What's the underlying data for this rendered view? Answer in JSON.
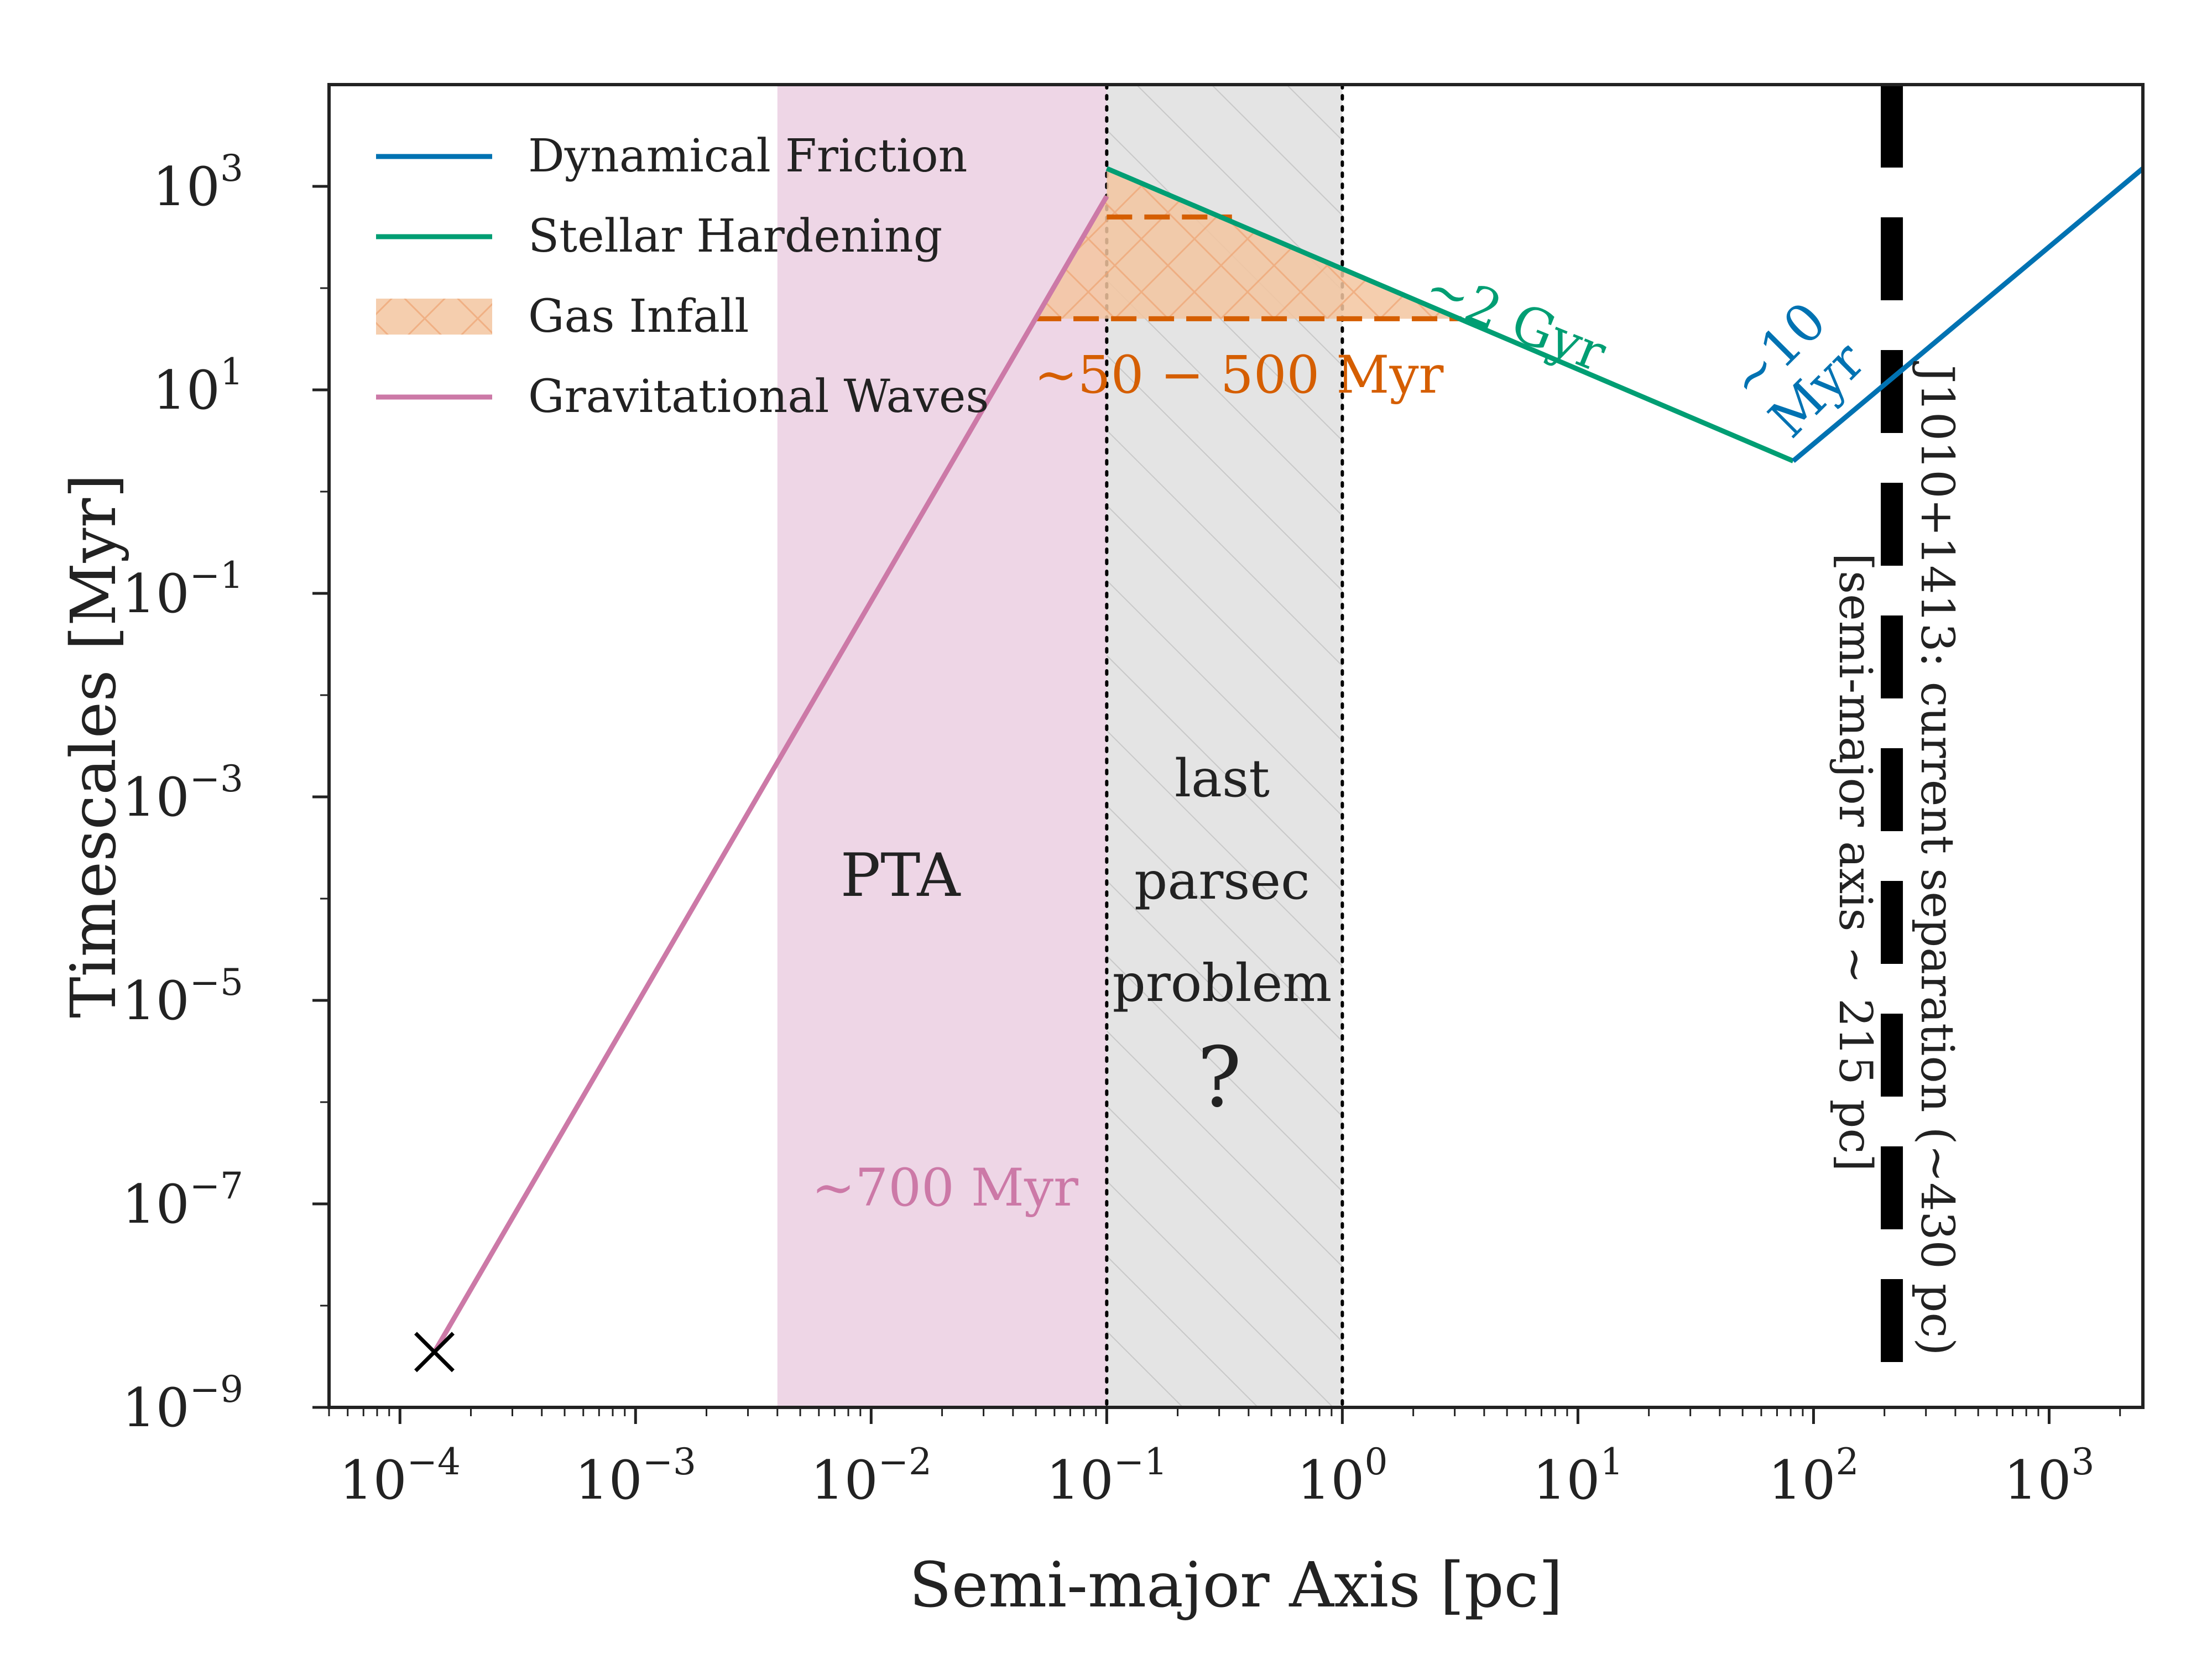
{
  "colors": {
    "dynamical_friction": "#0072b2",
    "stellar_hardening": "#009e73",
    "gas_infall": "#d55e00",
    "gas_infall_fill": "#f3c5a0",
    "gravitational_waves": "#cc79a7",
    "pta_band": "#eed6e6",
    "lpp_band": "#e4e4e4",
    "separation_line": "#000000"
  },
  "chart_data": {
    "type": "line",
    "xscale": "log",
    "yscale": "log",
    "xlabel": "Semi-major Axis [pc]",
    "ylabel": "Timescales [Myr]",
    "xlim": [
      5e-05,
      2500
    ],
    "ylim": [
      1e-09,
      10000
    ],
    "xticks": [
      {
        "value": 0.0001,
        "base": "10",
        "exp": "−4"
      },
      {
        "value": 0.001,
        "base": "10",
        "exp": "−3"
      },
      {
        "value": 0.01,
        "base": "10",
        "exp": "−2"
      },
      {
        "value": 0.1,
        "base": "10",
        "exp": "−1"
      },
      {
        "value": 1,
        "base": "10",
        "exp": "0"
      },
      {
        "value": 10,
        "base": "10",
        "exp": "1"
      },
      {
        "value": 100,
        "base": "10",
        "exp": "2"
      },
      {
        "value": 1000,
        "base": "10",
        "exp": "3"
      }
    ],
    "yticks": [
      {
        "value": 1e-09,
        "base": "10",
        "exp": "−9"
      },
      {
        "value": 1e-07,
        "base": "10",
        "exp": "−7"
      },
      {
        "value": 1e-05,
        "base": "10",
        "exp": "−5"
      },
      {
        "value": 0.001,
        "base": "10",
        "exp": "−3"
      },
      {
        "value": 0.1,
        "base": "10",
        "exp": "−1"
      },
      {
        "value": 10,
        "base": "10",
        "exp": "1"
      },
      {
        "value": 1000,
        "base": "10",
        "exp": "3"
      }
    ],
    "legend_position": "top-left",
    "series": [
      {
        "name": "Dynamical Friction",
        "key": "dynamical_friction",
        "x": [
          82,
          2500
        ],
        "y": [
          2,
          1500
        ]
      },
      {
        "name": "Stellar Hardening",
        "key": "stellar_hardening",
        "x": [
          0.1,
          82
        ],
        "y": [
          1500,
          2
        ]
      },
      {
        "name": "Gravitational Waves",
        "key": "gravitational_waves",
        "x": [
          0.00014,
          0.1
        ],
        "y": [
          3.5e-09,
          800
        ]
      }
    ],
    "gas_infall": {
      "name": "Gas Infall",
      "x_min": 0.05,
      "x_max": 3.2,
      "y_low": 50,
      "y_high": 500,
      "x_high_end": 0.34
    },
    "regions": [
      {
        "name": "PTA",
        "x_min": 0.004,
        "x_max": 0.1,
        "label": "PTA"
      },
      {
        "name": "last parsec problem",
        "x_min": 0.1,
        "x_max": 1,
        "label_lines": [
          "last",
          "parsec",
          "problem"
        ],
        "mark": "?"
      }
    ],
    "current_separation": {
      "x": 215
    },
    "end_marker": {
      "x": 0.00014,
      "y": 3.5e-09,
      "symbol": "×"
    },
    "annotations": {
      "gw_time": "∼700 Myr",
      "gas_time": "∼50 − 500 Myr",
      "stellar_time": "∼2 Gyr",
      "df_time_line1": "∼10",
      "df_time_line2": "Myr",
      "separation_line1": "J1010+1413: current separation (∼430 pc)",
      "separation_line2": "[semi-major axis ∼ 215 pc]"
    }
  }
}
